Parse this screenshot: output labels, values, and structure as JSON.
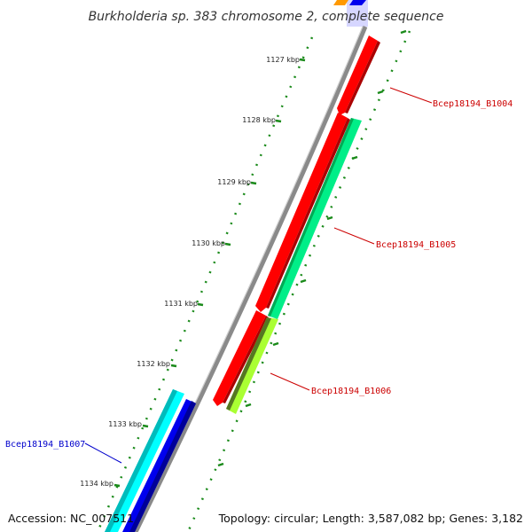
{
  "title": "Burkholderia sp. 383 chromosome 2, complete sequence",
  "footer": {
    "accession": "Accession: NC_007511",
    "topology": "Topology: circular; Length: 3,587,082 bp; Genes: 3,182"
  },
  "ticks": [
    {
      "kbp": 1127,
      "label": "1127 kbp"
    },
    {
      "kbp": 1128,
      "label": "1128 kbp"
    },
    {
      "kbp": 1129,
      "label": "1129 kbp"
    },
    {
      "kbp": 1130,
      "label": "1130 kbp"
    },
    {
      "kbp": 1131,
      "label": "1131 kbp"
    },
    {
      "kbp": 1132,
      "label": "1132 kbp"
    },
    {
      "kbp": 1133,
      "label": "1133 kbp"
    },
    {
      "kbp": 1134,
      "label": "1134 kbp"
    }
  ],
  "genes": [
    {
      "name": "Bcep18194_B1004",
      "color": "#ff0000",
      "label_color": "#cc0000"
    },
    {
      "name": "Bcep18194_B1005",
      "color": "#00ee88",
      "label_color": "#cc0000"
    },
    {
      "name": "Bcep18194_B1006",
      "color": "#aaff33",
      "label_color": "#cc0000"
    },
    {
      "name": "Bcep18194_B1007",
      "color": "#00ffff",
      "label_color": "#0000cc"
    }
  ],
  "colors": {
    "backbone": "#8a8a8a",
    "tick": "#1a8a1a",
    "forward_red": "#ff0000",
    "reverse_blue": "#0000ee",
    "orange": "#ff9900"
  }
}
